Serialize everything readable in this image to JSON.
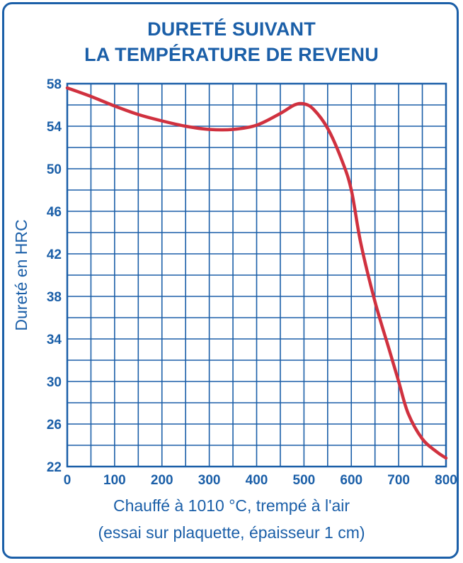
{
  "chart_data": {
    "type": "line",
    "title": [
      "DURETÉ SUIVANT",
      "LA TEMPÉRATURE DE REVENU"
    ],
    "ylabel": "Dureté en HRC",
    "xlabel": [
      "Chauffé à 1010 °C, trempé à l'air",
      "(essai sur plaquette, épaisseur 1 cm)"
    ],
    "xlim": [
      0,
      800
    ],
    "ylim": [
      22,
      58
    ],
    "x_ticks": [
      0,
      100,
      200,
      300,
      400,
      500,
      600,
      700,
      800
    ],
    "y_ticks": [
      22,
      26,
      30,
      34,
      38,
      42,
      46,
      50,
      54,
      58
    ],
    "grid": true,
    "series": [
      {
        "x": [
          0,
          50,
          100,
          150,
          200,
          250,
          300,
          350,
          400,
          450,
          480,
          500,
          520,
          550,
          580,
          600,
          620,
          650,
          680,
          700,
          720,
          750,
          780,
          800
        ],
        "y": [
          57.6,
          56.8,
          55.9,
          55.1,
          54.5,
          54.0,
          53.7,
          53.7,
          54.1,
          55.2,
          56.0,
          56.1,
          55.6,
          53.8,
          50.8,
          48.0,
          43.0,
          37.5,
          33.0,
          30.0,
          27.0,
          24.6,
          23.4,
          22.8
        ],
        "color": "#d0313f"
      }
    ],
    "colors": {
      "axis": "#1b5fa8",
      "grid": "#1b5fa8",
      "line": "#d0313f"
    }
  }
}
